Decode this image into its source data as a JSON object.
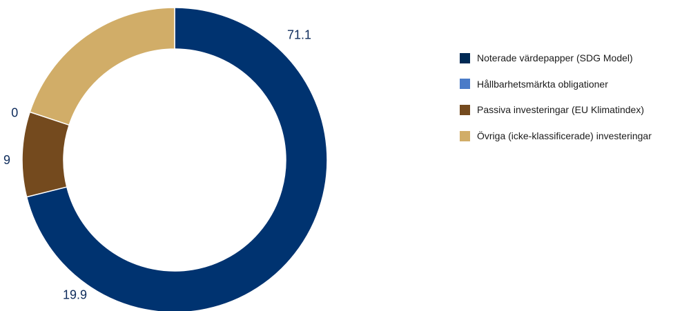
{
  "chart_data": {
    "type": "pie",
    "subtype": "donut",
    "title": "",
    "series": [
      {
        "name": "Noterade värdepapper (SDG Model)",
        "value": 71.1,
        "label": "71.1",
        "color": "#003370"
      },
      {
        "name": "Hållbarhetsmärkta obligationer",
        "value": 0,
        "label": "0",
        "color": "#4a7bc8"
      },
      {
        "name": "Passiva investeringar (EU Klimatindex)",
        "value": 9,
        "label": "9",
        "color": "#744a1e"
      },
      {
        "name": "Övriga (icke-klassificerade) investeringar",
        "value": 19.9,
        "label": "19.9",
        "color": "#d1ad68"
      }
    ],
    "legend_position": "right",
    "legend_swatch_colors": [
      "#002a55",
      "#4a7bc8",
      "#744a1e",
      "#d1ad68"
    ],
    "label_color": "#0d2b5b"
  }
}
